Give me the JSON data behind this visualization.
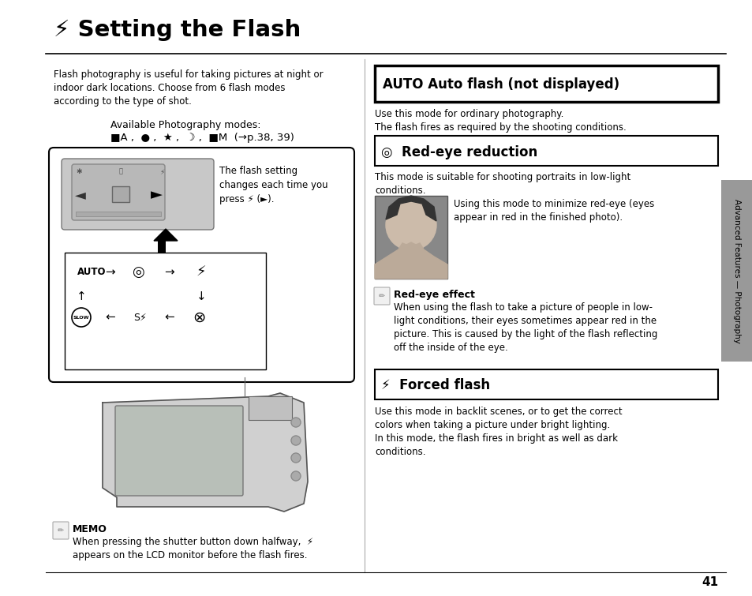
{
  "bg_color": "#ffffff",
  "page_width": 9.54,
  "page_height": 7.55,
  "title_bolt": "⚡",
  "title_text": " Setting the Flash",
  "sidebar_color": "#999999",
  "sidebar_text": "Advanced Features — Photography",
  "left_col": {
    "intro": "Flash photography is useful for taking pictures at night or\nindoor dark locations. Choose from 6 flash modes\naccording to the type of shot.",
    "avail_label": "Available Photography modes:",
    "avail_modes": "■A ,  ● ,  ★ ,  ☽ ,  ■M  (→p.38, 39)",
    "flash_caption": "The flash setting\nchanges each time you\npress ⚡ (►).",
    "memo_title": "MEMO",
    "memo_text": "When pressing the shutter button down halfway,  ⚡\nappears on the LCD monitor before the flash fires."
  },
  "right_col": {
    "auto_title": "AUTO Auto flash (not displayed)",
    "auto_text": "Use this mode for ordinary photography.\nThe flash fires as required by the shooting conditions.",
    "redeye_title": "◎  Red-eye reduction",
    "redeye_text": "This mode is suitable for shooting portraits in low-light\nconditions.",
    "redeye_caption": "Using this mode to minimize red-eye (eyes\nappear in red in the finished photo).",
    "note_title": "Red-eye effect",
    "note_text": "When using the flash to take a picture of people in low-\nlight conditions, their eyes sometimes appear red in the\npicture. This is caused by the light of the flash reflecting\noff the inside of the eye.",
    "forced_title": "⚡  Forced flash",
    "forced_text": "Use this mode in backlit scenes, or to get the correct\ncolors when taking a picture under bright lighting.\nIn this mode, the flash fires in bright as well as dark\nconditions."
  },
  "page_num": "41"
}
